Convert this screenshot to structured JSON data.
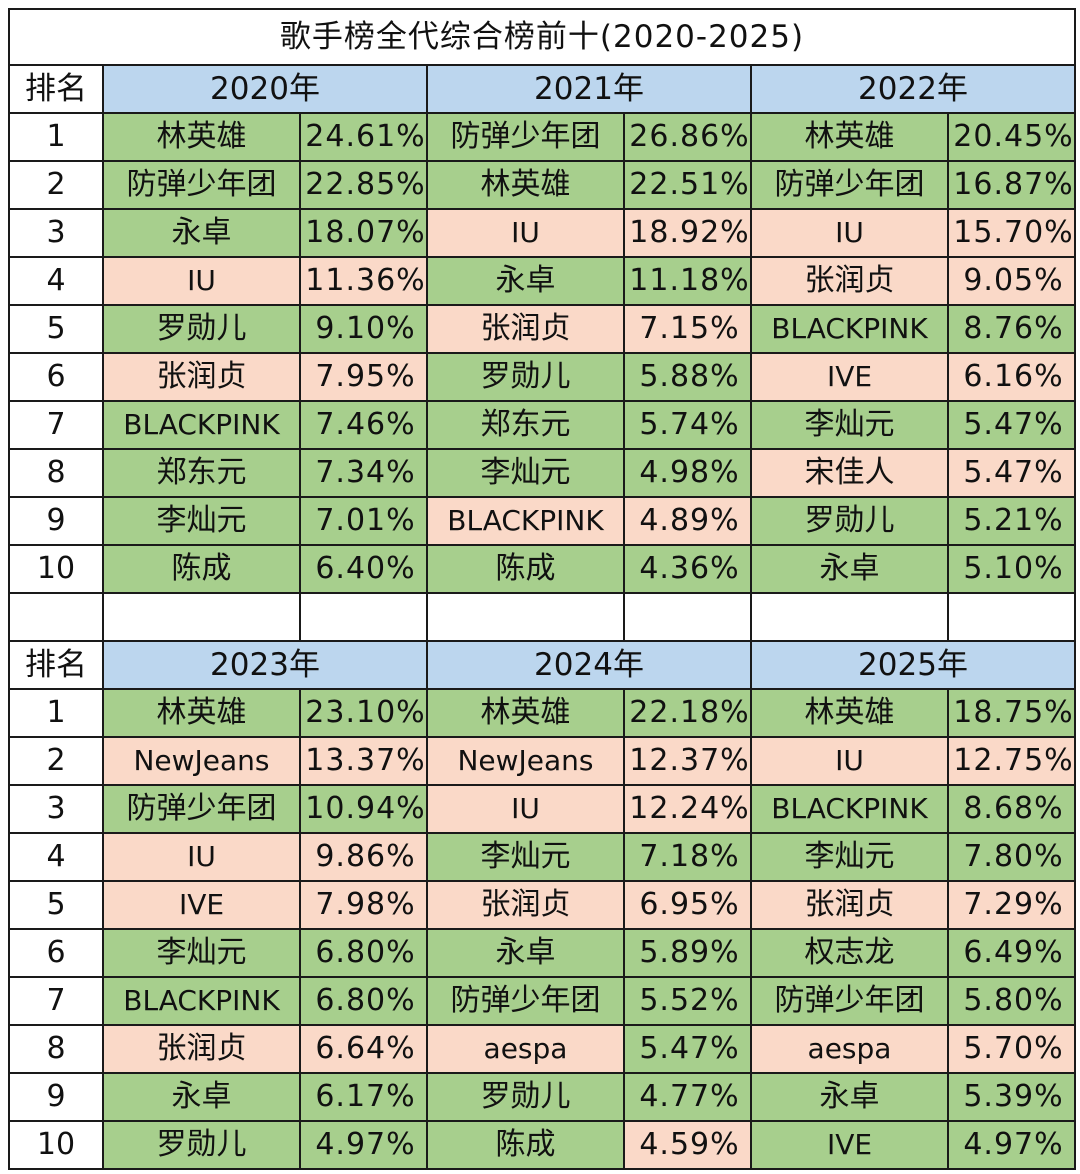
{
  "title": "歌手榜全代综合榜前十(2020-2025)",
  "rank_header": "排名",
  "colors": {
    "header_blue": "#bcd6ee",
    "green": "#a7cf8d",
    "pink": "#fad9c8"
  },
  "sections": [
    {
      "years": [
        "2020年",
        "2021年",
        "2022年"
      ],
      "rows": [
        {
          "rank": "1",
          "cells": [
            {
              "name": "林英雄",
              "pct": "24.61%",
              "name_c": "g",
              "pct_c": "g"
            },
            {
              "name": "防弹少年团",
              "pct": "26.86%",
              "name_c": "g",
              "pct_c": "g"
            },
            {
              "name": "林英雄",
              "pct": "20.45%",
              "name_c": "g",
              "pct_c": "g"
            }
          ]
        },
        {
          "rank": "2",
          "cells": [
            {
              "name": "防弹少年团",
              "pct": "22.85%",
              "name_c": "g",
              "pct_c": "g"
            },
            {
              "name": "林英雄",
              "pct": "22.51%",
              "name_c": "g",
              "pct_c": "g"
            },
            {
              "name": "防弹少年团",
              "pct": "16.87%",
              "name_c": "g",
              "pct_c": "g"
            }
          ]
        },
        {
          "rank": "3",
          "cells": [
            {
              "name": "永卓",
              "pct": "18.07%",
              "name_c": "g",
              "pct_c": "g"
            },
            {
              "name": "IU",
              "pct": "18.92%",
              "name_c": "p",
              "pct_c": "p"
            },
            {
              "name": "IU",
              "pct": "15.70%",
              "name_c": "p",
              "pct_c": "p"
            }
          ]
        },
        {
          "rank": "4",
          "cells": [
            {
              "name": "IU",
              "pct": "11.36%",
              "name_c": "p",
              "pct_c": "p"
            },
            {
              "name": "永卓",
              "pct": "11.18%",
              "name_c": "g",
              "pct_c": "g"
            },
            {
              "name": "张润贞",
              "pct": "9.05%",
              "name_c": "p",
              "pct_c": "p"
            }
          ]
        },
        {
          "rank": "5",
          "cells": [
            {
              "name": "罗勋儿",
              "pct": "9.10%",
              "name_c": "g",
              "pct_c": "g"
            },
            {
              "name": "张润贞",
              "pct": "7.15%",
              "name_c": "p",
              "pct_c": "p"
            },
            {
              "name": "BLACKPINK",
              "pct": "8.76%",
              "name_c": "g",
              "pct_c": "g"
            }
          ]
        },
        {
          "rank": "6",
          "cells": [
            {
              "name": "张润贞",
              "pct": "7.95%",
              "name_c": "p",
              "pct_c": "p"
            },
            {
              "name": "罗勋儿",
              "pct": "5.88%",
              "name_c": "g",
              "pct_c": "g"
            },
            {
              "name": "IVE",
              "pct": "6.16%",
              "name_c": "p",
              "pct_c": "p"
            }
          ]
        },
        {
          "rank": "7",
          "cells": [
            {
              "name": "BLACKPINK",
              "pct": "7.46%",
              "name_c": "g",
              "pct_c": "g"
            },
            {
              "name": "郑东元",
              "pct": "5.74%",
              "name_c": "g",
              "pct_c": "g"
            },
            {
              "name": "李灿元",
              "pct": "5.47%",
              "name_c": "g",
              "pct_c": "g"
            }
          ]
        },
        {
          "rank": "8",
          "cells": [
            {
              "name": "郑东元",
              "pct": "7.34%",
              "name_c": "g",
              "pct_c": "g"
            },
            {
              "name": "李灿元",
              "pct": "4.98%",
              "name_c": "g",
              "pct_c": "g"
            },
            {
              "name": "宋佳人",
              "pct": "5.47%",
              "name_c": "p",
              "pct_c": "p"
            }
          ]
        },
        {
          "rank": "9",
          "cells": [
            {
              "name": "李灿元",
              "pct": "7.01%",
              "name_c": "g",
              "pct_c": "g"
            },
            {
              "name": "BLACKPINK",
              "pct": "4.89%",
              "name_c": "p",
              "pct_c": "p"
            },
            {
              "name": "罗勋儿",
              "pct": "5.21%",
              "name_c": "g",
              "pct_c": "g"
            }
          ]
        },
        {
          "rank": "10",
          "cells": [
            {
              "name": "陈成",
              "pct": "6.40%",
              "name_c": "g",
              "pct_c": "g"
            },
            {
              "name": "陈成",
              "pct": "4.36%",
              "name_c": "g",
              "pct_c": "g"
            },
            {
              "name": "永卓",
              "pct": "5.10%",
              "name_c": "g",
              "pct_c": "g"
            }
          ]
        }
      ]
    },
    {
      "years": [
        "2023年",
        "2024年",
        "2025年"
      ],
      "rows": [
        {
          "rank": "1",
          "cells": [
            {
              "name": "林英雄",
              "pct": "23.10%",
              "name_c": "g",
              "pct_c": "g"
            },
            {
              "name": "林英雄",
              "pct": "22.18%",
              "name_c": "g",
              "pct_c": "g"
            },
            {
              "name": "林英雄",
              "pct": "18.75%",
              "name_c": "g",
              "pct_c": "g"
            }
          ]
        },
        {
          "rank": "2",
          "cells": [
            {
              "name": "NewJeans",
              "pct": "13.37%",
              "name_c": "p",
              "pct_c": "p"
            },
            {
              "name": "NewJeans",
              "pct": "12.37%",
              "name_c": "p",
              "pct_c": "p"
            },
            {
              "name": "IU",
              "pct": "12.75%",
              "name_c": "p",
              "pct_c": "p"
            }
          ]
        },
        {
          "rank": "3",
          "cells": [
            {
              "name": "防弹少年团",
              "pct": "10.94%",
              "name_c": "g",
              "pct_c": "g"
            },
            {
              "name": "IU",
              "pct": "12.24%",
              "name_c": "p",
              "pct_c": "p"
            },
            {
              "name": "BLACKPINK",
              "pct": "8.68%",
              "name_c": "g",
              "pct_c": "g"
            }
          ]
        },
        {
          "rank": "4",
          "cells": [
            {
              "name": "IU",
              "pct": "9.86%",
              "name_c": "p",
              "pct_c": "p"
            },
            {
              "name": "李灿元",
              "pct": "7.18%",
              "name_c": "g",
              "pct_c": "g"
            },
            {
              "name": "李灿元",
              "pct": "7.80%",
              "name_c": "g",
              "pct_c": "g"
            }
          ]
        },
        {
          "rank": "5",
          "cells": [
            {
              "name": "IVE",
              "pct": "7.98%",
              "name_c": "p",
              "pct_c": "p"
            },
            {
              "name": "张润贞",
              "pct": "6.95%",
              "name_c": "p",
              "pct_c": "p"
            },
            {
              "name": "张润贞",
              "pct": "7.29%",
              "name_c": "p",
              "pct_c": "p"
            }
          ]
        },
        {
          "rank": "6",
          "cells": [
            {
              "name": "李灿元",
              "pct": "6.80%",
              "name_c": "g",
              "pct_c": "g"
            },
            {
              "name": "永卓",
              "pct": "5.89%",
              "name_c": "g",
              "pct_c": "g"
            },
            {
              "name": "权志龙",
              "pct": "6.49%",
              "name_c": "g",
              "pct_c": "g"
            }
          ]
        },
        {
          "rank": "7",
          "cells": [
            {
              "name": "BLACKPINK",
              "pct": "6.80%",
              "name_c": "g",
              "pct_c": "g"
            },
            {
              "name": "防弹少年团",
              "pct": "5.52%",
              "name_c": "g",
              "pct_c": "g"
            },
            {
              "name": "防弹少年团",
              "pct": "5.80%",
              "name_c": "g",
              "pct_c": "g"
            }
          ]
        },
        {
          "rank": "8",
          "cells": [
            {
              "name": "张润贞",
              "pct": "6.64%",
              "name_c": "p",
              "pct_c": "p"
            },
            {
              "name": "aespa",
              "pct": "5.47%",
              "name_c": "p",
              "pct_c": "g"
            },
            {
              "name": "aespa",
              "pct": "5.70%",
              "name_c": "p",
              "pct_c": "p"
            }
          ]
        },
        {
          "rank": "9",
          "cells": [
            {
              "name": "永卓",
              "pct": "6.17%",
              "name_c": "g",
              "pct_c": "g"
            },
            {
              "name": "罗勋儿",
              "pct": "4.77%",
              "name_c": "g",
              "pct_c": "g"
            },
            {
              "name": "永卓",
              "pct": "5.39%",
              "name_c": "g",
              "pct_c": "g"
            }
          ]
        },
        {
          "rank": "10",
          "cells": [
            {
              "name": "罗勋儿",
              "pct": "4.97%",
              "name_c": "g",
              "pct_c": "g"
            },
            {
              "name": "陈成",
              "pct": "4.59%",
              "name_c": "g",
              "pct_c": "p"
            },
            {
              "name": "IVE",
              "pct": "4.97%",
              "name_c": "g",
              "pct_c": "g"
            }
          ]
        }
      ]
    }
  ]
}
